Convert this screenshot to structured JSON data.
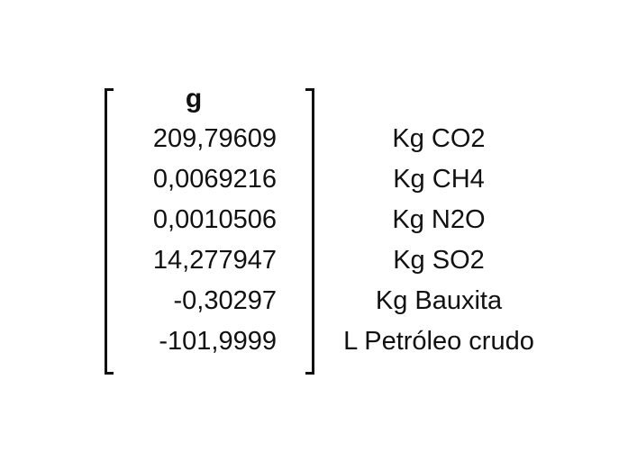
{
  "matrix": {
    "header": "g",
    "values": [
      "209,79609",
      "0,0069216",
      "0,0010506",
      "14,277947",
      "-0,30297",
      "-101,9999"
    ]
  },
  "units": [
    "Kg CO2",
    "Kg CH4",
    "Kg N2O",
    "Kg SO2",
    "Kg Bauxita",
    "L Petróleo crudo"
  ]
}
